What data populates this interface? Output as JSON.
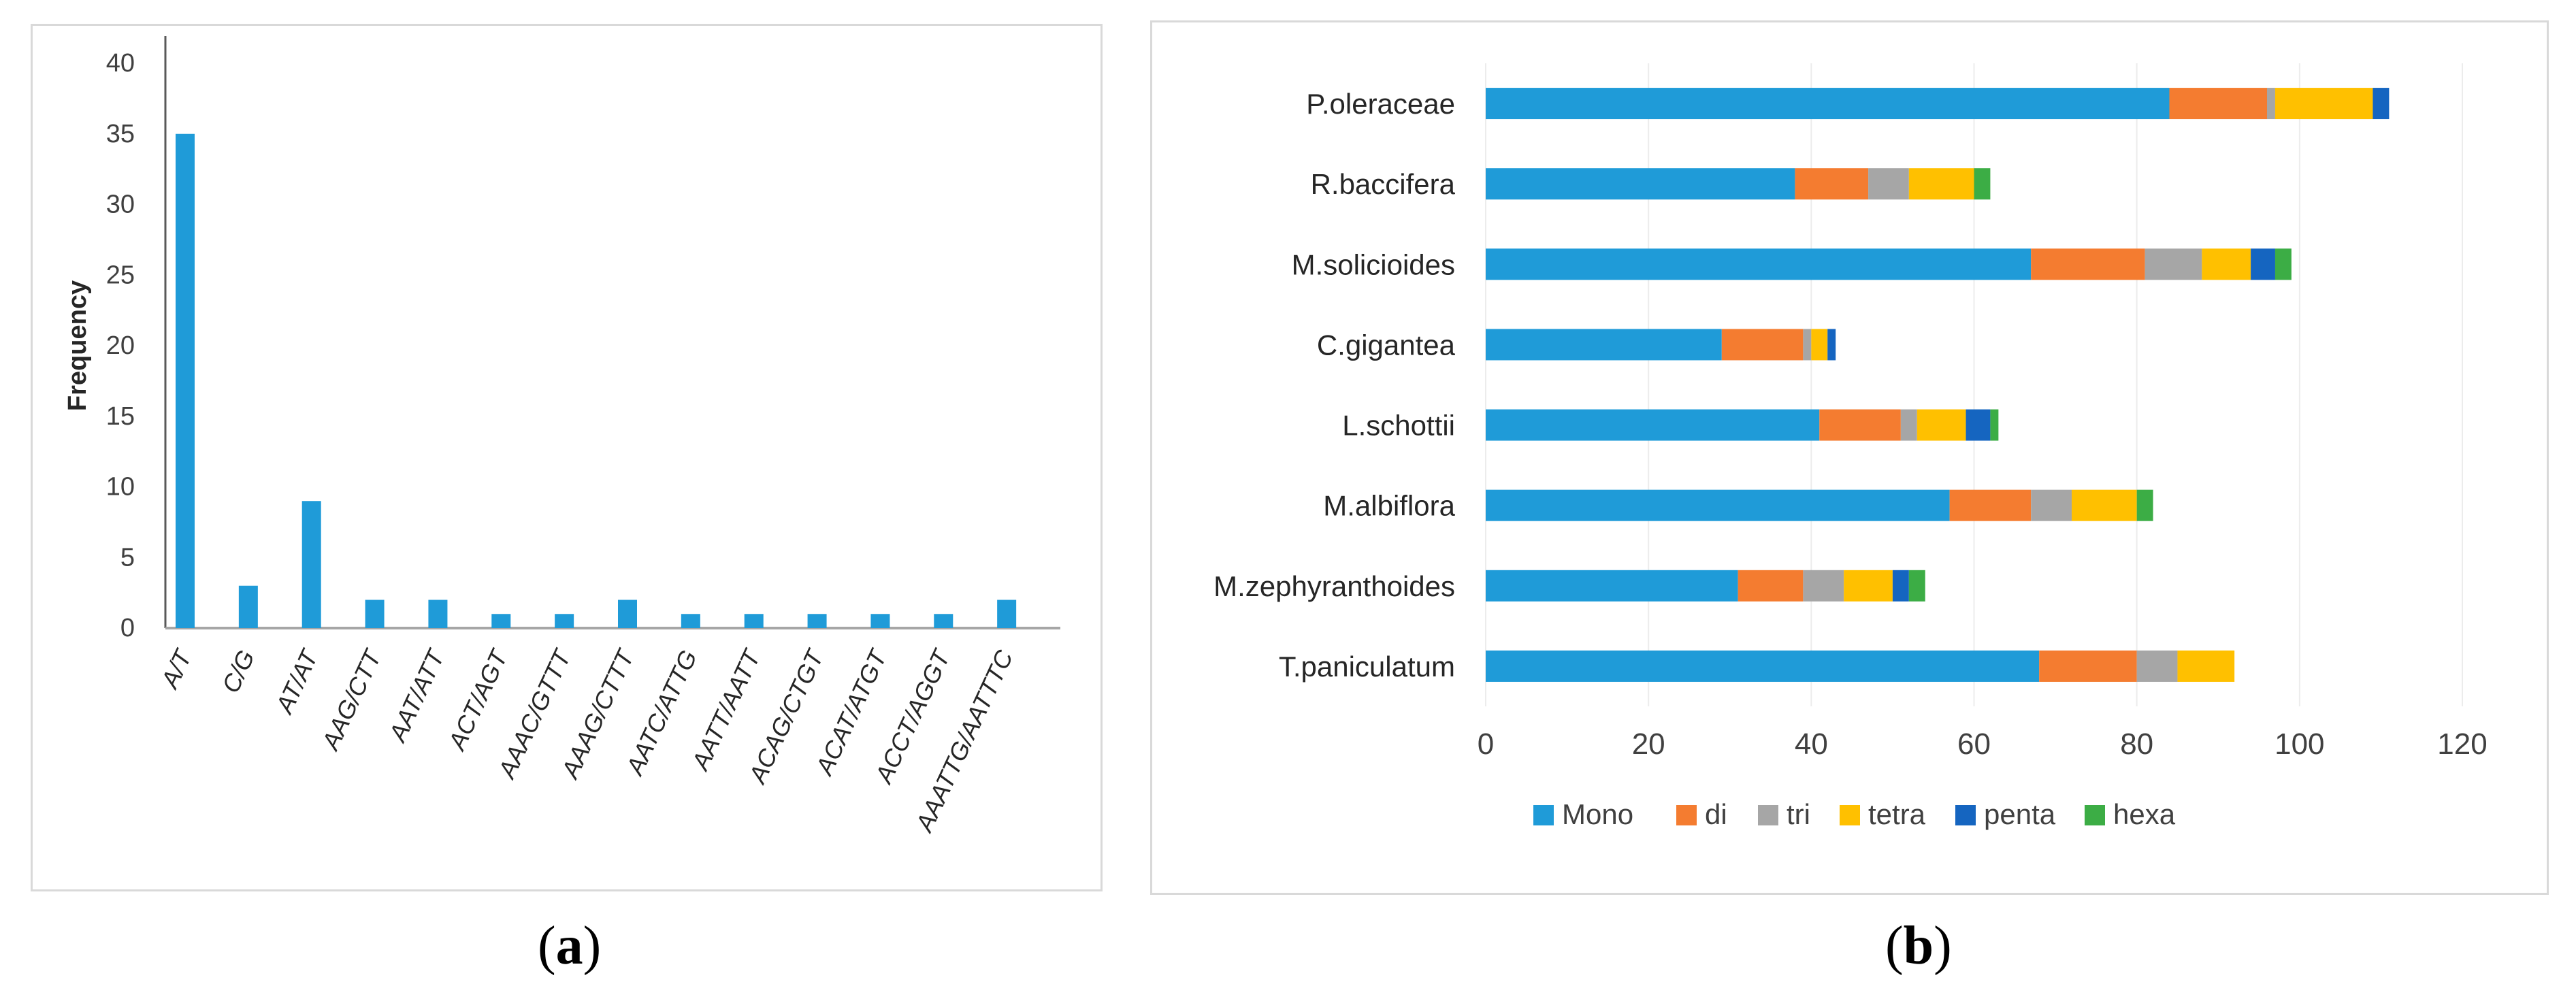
{
  "chart_data": [
    {
      "type": "bar",
      "title": "",
      "xlabel": "",
      "ylabel": "Frequency",
      "ylim": [
        0,
        40
      ],
      "yticks": [
        "0",
        "5",
        "10",
        "15",
        "20",
        "25",
        "30",
        "35",
        "40"
      ],
      "categories": [
        "A/T",
        "C/G",
        "AT/AT",
        "AAG/CTT",
        "AAT/ATT",
        "ACT/AGT",
        "AAAC/GTTT",
        "AAAG/CTTT",
        "AATC/ATTG",
        "AATT/AATT",
        "ACAG/CTGT",
        "ACAT/ATGT",
        "ACCT/AGGT",
        "AAATTG/AATTTC"
      ],
      "values": [
        35,
        3,
        9,
        2,
        2,
        1,
        1,
        2,
        1,
        1,
        1,
        1,
        1,
        2
      ],
      "color": "#1f9bd8",
      "caption": "a"
    },
    {
      "type": "bar",
      "orientation": "horizontal",
      "stacked": true,
      "title": "",
      "xlabel": "",
      "ylabel": "",
      "xlim": [
        0,
        120
      ],
      "xticks": [
        "0",
        "20",
        "40",
        "60",
        "80",
        "100",
        "120"
      ],
      "categories": [
        "P.oleraceae",
        "R.baccifera",
        "M.solicioides",
        "C.gigantea",
        "L.schottii",
        "M.albiflora",
        "M.zephyranthoides",
        "T.paniculatum"
      ],
      "series": [
        {
          "name": "Mono",
          "color": "#1f9bd8",
          "values": [
            84,
            38,
            67,
            29,
            41,
            57,
            31,
            68
          ]
        },
        {
          "name": "di",
          "color": "#f47c30",
          "values": [
            12,
            9,
            14,
            10,
            10,
            10,
            8,
            12
          ]
        },
        {
          "name": "tri",
          "color": "#a6a6a6",
          "values": [
            1,
            5,
            7,
            1,
            2,
            5,
            5,
            5
          ]
        },
        {
          "name": "tetra",
          "color": "#ffc000",
          "values": [
            12,
            8,
            6,
            2,
            6,
            8,
            6,
            7
          ]
        },
        {
          "name": "penta",
          "color": "#1565c0",
          "values": [
            2,
            0,
            3,
            1,
            3,
            0,
            2,
            0
          ]
        },
        {
          "name": "hexa",
          "color": "#3cad45",
          "values": [
            0,
            2,
            2,
            0,
            1,
            2,
            2,
            0
          ]
        }
      ],
      "legend_position": "bottom",
      "caption": "b"
    }
  ]
}
